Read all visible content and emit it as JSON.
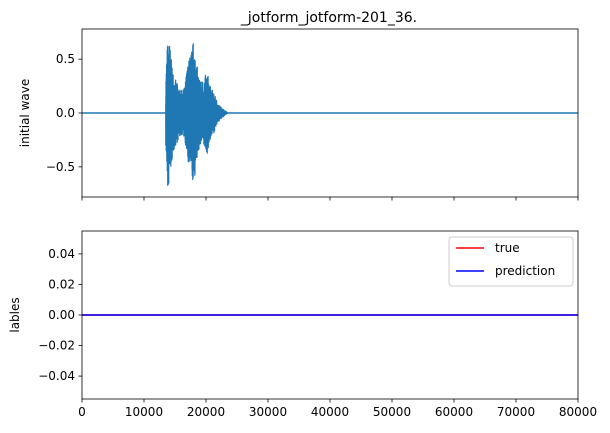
{
  "figure": {
    "title": "_jotform_jotform-201_36."
  },
  "chart_data": [
    {
      "type": "line",
      "title": "_jotform_jotform-201_36.",
      "xlabel": "",
      "ylabel": "initial wave",
      "xlim": [
        0,
        80000
      ],
      "ylim": [
        -0.78,
        0.78
      ],
      "yticks": [
        -0.5,
        0.0,
        0.5
      ],
      "ytick_labels": [
        "−0.5",
        "0.0",
        "0.5"
      ],
      "xticks": [
        0,
        10000,
        20000,
        30000,
        40000,
        50000,
        60000,
        70000,
        80000
      ],
      "xtick_labels_visible": false,
      "grid": false,
      "series": [
        {
          "color": "#1f77b4",
          "signal_start": 13500,
          "signal_end": 23500,
          "total_samples": 80000,
          "envelope": [
            [
              0,
              0.0
            ],
            [
              13400,
              0.0
            ],
            [
              13500,
              0.3
            ],
            [
              13700,
              0.6
            ],
            [
              13900,
              0.7
            ],
            [
              14100,
              0.68
            ],
            [
              14400,
              0.5
            ],
            [
              14800,
              0.35
            ],
            [
              15300,
              0.28
            ],
            [
              15800,
              0.22
            ],
            [
              16200,
              0.2
            ],
            [
              16600,
              0.25
            ],
            [
              17000,
              0.45
            ],
            [
              17500,
              0.55
            ],
            [
              18000,
              0.68
            ],
            [
              18400,
              0.5
            ],
            [
              18800,
              0.35
            ],
            [
              19300,
              0.3
            ],
            [
              19700,
              0.33
            ],
            [
              20200,
              0.38
            ],
            [
              20700,
              0.25
            ],
            [
              21300,
              0.18
            ],
            [
              22000,
              0.08
            ],
            [
              22700,
              0.04
            ],
            [
              23500,
              0.0
            ],
            [
              80000,
              0.0
            ]
          ],
          "min_value": -0.69,
          "max_value": 0.71
        }
      ]
    },
    {
      "type": "line",
      "title": "",
      "xlabel": "",
      "ylabel": "lables",
      "xlim": [
        0,
        80000
      ],
      "ylim": [
        -0.055,
        0.055
      ],
      "yticks": [
        -0.04,
        -0.02,
        0.0,
        0.02,
        0.04
      ],
      "ytick_labels": [
        "−0.04",
        "−0.02",
        "0.00",
        "0.02",
        "0.04"
      ],
      "xticks": [
        0,
        10000,
        20000,
        30000,
        40000,
        50000,
        60000,
        70000,
        80000
      ],
      "xtick_labels": [
        "0",
        "10000",
        "20000",
        "30000",
        "40000",
        "50000",
        "60000",
        "70000",
        "80000"
      ],
      "grid": false,
      "legend": "top-right",
      "series": [
        {
          "name": "true",
          "color": "#ff0000",
          "x": [
            0,
            80000
          ],
          "y": [
            0,
            0
          ]
        },
        {
          "name": "prediction",
          "color": "#0000ff",
          "x": [
            0,
            80000
          ],
          "y": [
            0,
            0
          ]
        }
      ]
    }
  ]
}
